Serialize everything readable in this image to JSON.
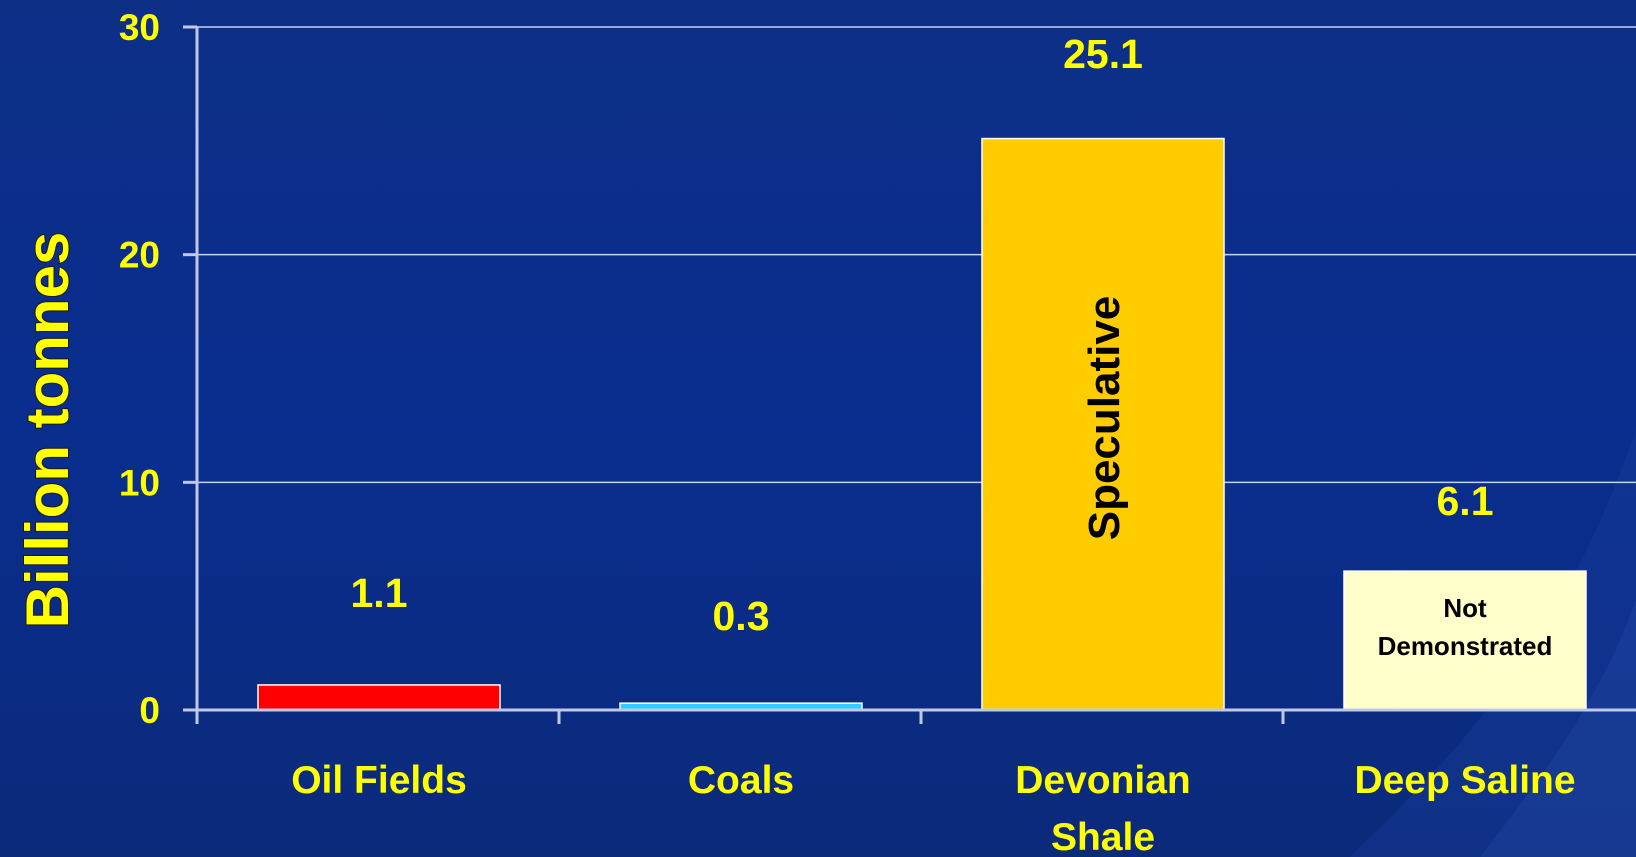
{
  "chart_data": {
    "type": "bar",
    "ylabel": "Billion tonnes",
    "ylim": [
      0,
      30
    ],
    "yticks": [
      "0",
      "10",
      "20",
      "30"
    ],
    "grid": true,
    "categories": [
      "Oil Fields",
      "Coals",
      "Devonian Shale",
      "Deep Saline"
    ],
    "values": [
      1.1,
      0.3,
      25.1,
      6.1
    ],
    "value_labels": [
      "1.1",
      "0.3",
      "25.1",
      "6.1"
    ],
    "bar_colors": [
      "#ff0000",
      "#33ccff",
      "#ffcc00",
      "#ffffcc"
    ],
    "bar_annotations": [
      {
        "category": "Devonian Shale",
        "text": "Speculative"
      },
      {
        "category": "Deep Saline",
        "text": "Not Demonstrated"
      }
    ]
  },
  "colors": {
    "background": "#0a2e8f",
    "text": "#ffff00",
    "axis": "#c0c8e8"
  }
}
